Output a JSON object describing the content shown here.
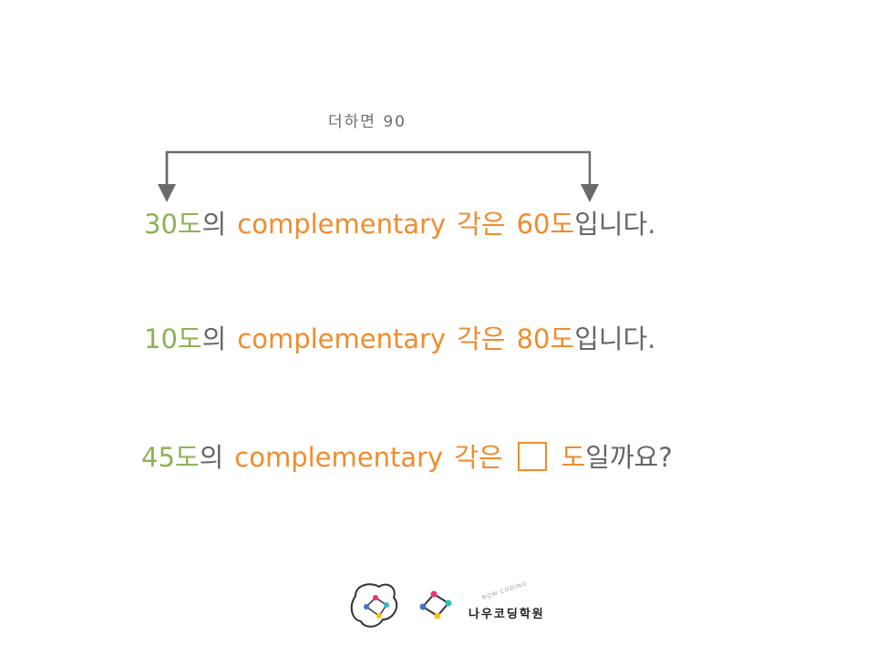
{
  "bracket": {
    "label": "더하면 90"
  },
  "lines": [
    {
      "angle": "30도",
      "particle": "의",
      "term": "complementary",
      "gak": "각은",
      "answer": "60도",
      "ending": "입니다."
    },
    {
      "angle": "10도",
      "particle": "의",
      "term": "complementary",
      "gak": "각은",
      "answer": "80도",
      "ending": "입니다."
    },
    {
      "angle": "45도",
      "particle": "의",
      "term": "complementary",
      "gak": "각은",
      "answer": "도",
      "ending": "일까요?"
    }
  ],
  "logo": {
    "name": "나우코딩학원",
    "subtitle": "NOW CODING"
  },
  "colors": {
    "angle": "#8db255",
    "highlight": "#f08c2e",
    "text": "#666666"
  }
}
